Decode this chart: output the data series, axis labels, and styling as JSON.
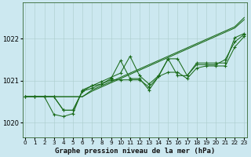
{
  "background_color": "#cce8f0",
  "grid_color": "#aacccc",
  "line_color": "#1a6b1a",
  "xlabel": "Graphe pression niveau de la mer (hPa)",
  "ylim": [
    1019.65,
    1022.85
  ],
  "xlim": [
    -0.3,
    23.3
  ],
  "yticks": [
    1020,
    1021,
    1022
  ],
  "xticks": [
    0,
    1,
    2,
    3,
    4,
    5,
    6,
    7,
    8,
    9,
    10,
    11,
    12,
    13,
    14,
    15,
    16,
    17,
    18,
    19,
    20,
    21,
    22,
    23
  ],
  "series": {
    "line1": [
      1020.62,
      1020.62,
      1020.62,
      1020.62,
      1020.62,
      1020.62,
      1020.62,
      1020.75,
      1020.85,
      1020.95,
      1021.05,
      1021.15,
      1021.25,
      1021.35,
      1021.45,
      1021.55,
      1021.65,
      1021.75,
      1021.85,
      1021.95,
      1022.05,
      1022.15,
      1022.25,
      1022.45
    ],
    "line2": [
      1020.62,
      1020.62,
      1020.62,
      1020.62,
      1020.62,
      1020.62,
      1020.62,
      1020.78,
      1020.88,
      1020.98,
      1021.08,
      1021.18,
      1021.28,
      1021.38,
      1021.48,
      1021.58,
      1021.68,
      1021.78,
      1021.88,
      1021.98,
      1022.08,
      1022.18,
      1022.28,
      1022.5
    ],
    "line3": [
      1020.62,
      1020.62,
      1020.62,
      1020.62,
      1020.3,
      1020.3,
      1020.75,
      1020.82,
      1020.92,
      1021.02,
      1021.02,
      1021.02,
      1021.02,
      1020.85,
      1021.1,
      1021.2,
      1021.2,
      1021.05,
      1021.3,
      1021.35,
      1021.35,
      1021.35,
      1021.8,
      1022.05
    ],
    "line4": [
      1020.62,
      1020.62,
      1020.62,
      1020.2,
      1020.15,
      1020.22,
      1020.78,
      1020.88,
      1020.92,
      1021.05,
      1021.48,
      1021.05,
      1021.05,
      1020.78,
      1021.1,
      1021.52,
      1021.12,
      1021.12,
      1021.38,
      1021.38,
      1021.38,
      1021.5,
      1021.92,
      1022.1
    ],
    "line5": [
      1020.62,
      1020.62,
      1020.62,
      1020.62,
      1020.3,
      1020.3,
      1020.75,
      1020.88,
      1020.98,
      1021.08,
      1021.18,
      1021.58,
      1021.12,
      1020.92,
      1021.12,
      1021.52,
      1021.52,
      1021.12,
      1021.42,
      1021.42,
      1021.42,
      1021.42,
      1022.02,
      1022.12
    ]
  }
}
